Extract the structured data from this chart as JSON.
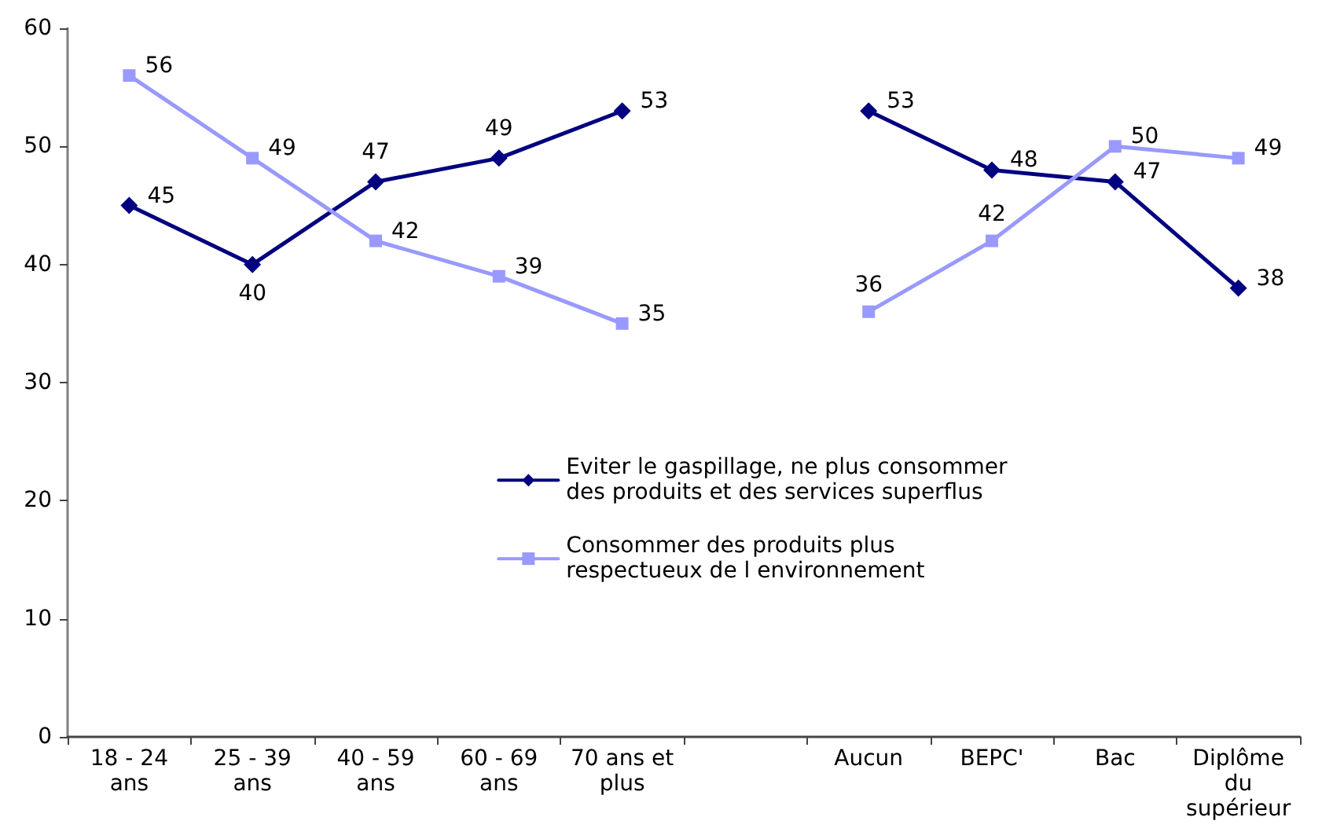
{
  "chart_data": {
    "type": "line",
    "categories": [
      "18 - 24 ans",
      "25 - 39 ans",
      "40 - 59 ans",
      "60 - 69 ans",
      "70 ans et plus",
      null,
      "Aucun",
      "BEPC'",
      "Bac",
      "Diplôme du supérieur"
    ],
    "series": [
      {
        "name": "Eviter le gaspillage, ne plus consommer des produits et des services superflus",
        "color": "#000080",
        "marker": "diamond",
        "values": [
          45,
          40,
          47,
          49,
          53,
          null,
          53,
          48,
          47,
          38
        ]
      },
      {
        "name": "Consommer des produits plus respectueux de l environnement",
        "color": "#9999ff",
        "marker": "square",
        "values": [
          56,
          49,
          42,
          39,
          35,
          null,
          36,
          42,
          50,
          49
        ]
      }
    ],
    "ylim": [
      0,
      60
    ],
    "yticks": [
      0,
      10,
      20,
      30,
      40,
      50,
      60
    ],
    "grid": false,
    "legend": "center",
    "data_labels": true
  }
}
